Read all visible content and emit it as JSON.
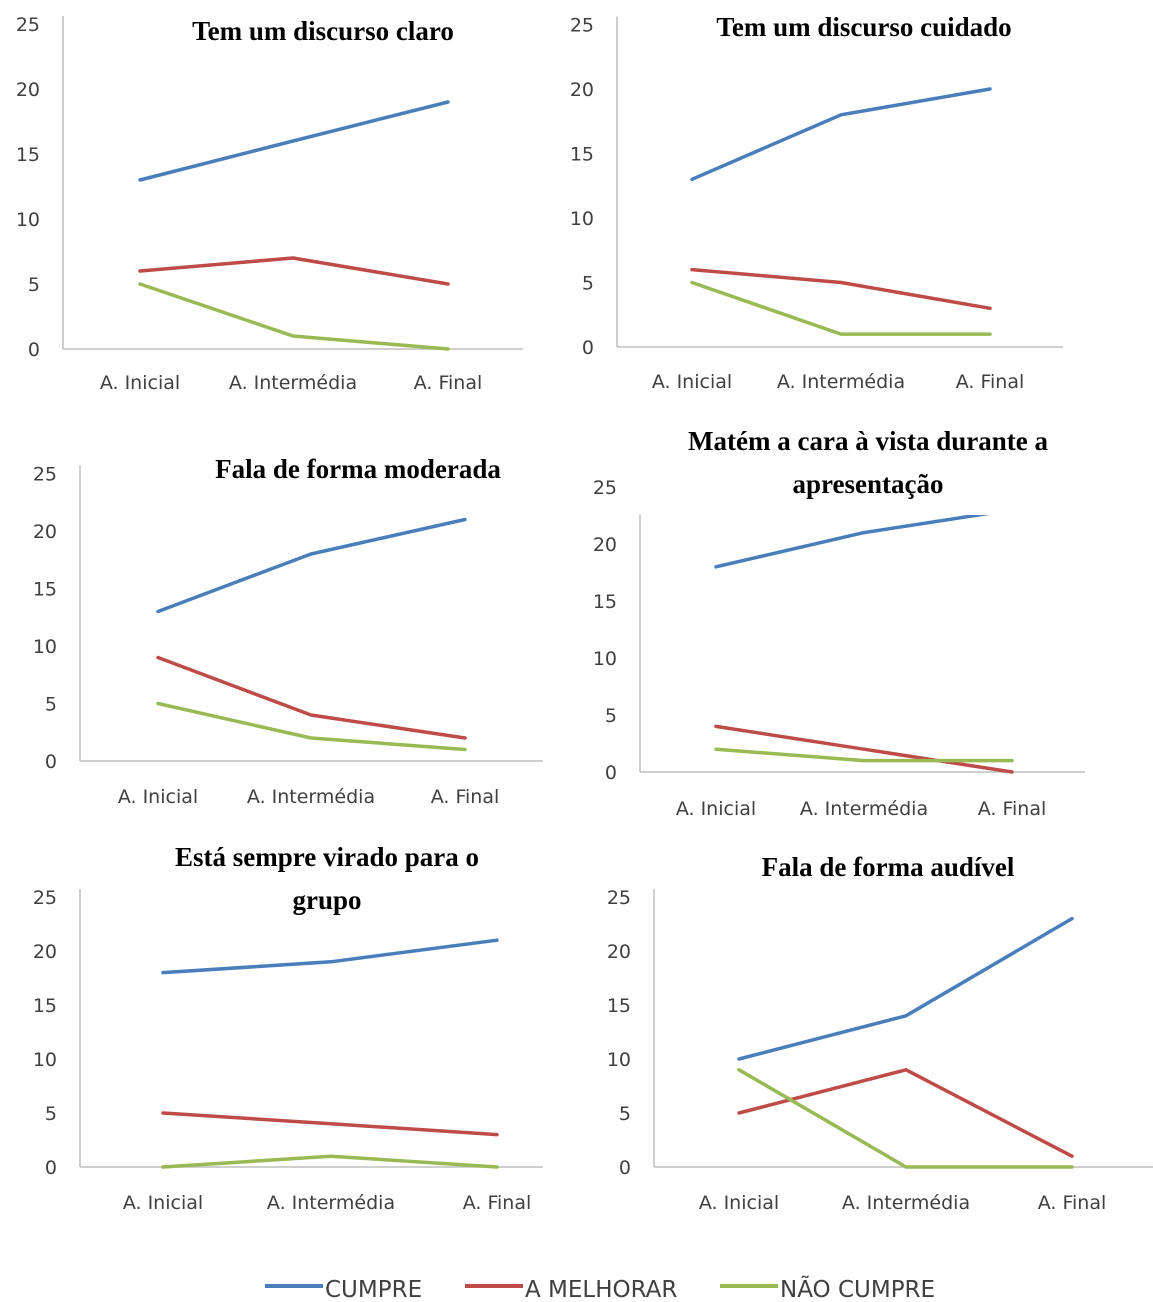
{
  "legend": [
    {
      "name": "CUMPRE",
      "color": "#4a7ebb"
    },
    {
      "name": "A MELHORAR",
      "color": "#be4b48"
    },
    {
      "name": "NÃO CUMPRE",
      "color": "#98b954"
    }
  ],
  "chart_data": [
    {
      "type": "line",
      "title": "Tem um discurso claro",
      "categories": [
        "A. Inicial",
        "A. Intermédia",
        "A. Final"
      ],
      "ylim": [
        0,
        25
      ],
      "yticks": [
        0,
        5,
        10,
        15,
        20,
        25
      ],
      "series": [
        {
          "name": "CUMPRE",
          "values": [
            13,
            16,
            19
          ]
        },
        {
          "name": "A MELHORAR",
          "values": [
            6,
            7,
            5
          ]
        },
        {
          "name": "NÃO CUMPRE",
          "values": [
            5,
            1,
            0
          ]
        }
      ]
    },
    {
      "type": "line",
      "title": "Tem um discurso cuidado",
      "categories": [
        "A. Inicial",
        "A. Intermédia",
        "A. Final"
      ],
      "ylim": [
        0,
        25
      ],
      "yticks": [
        0,
        5,
        10,
        15,
        20,
        25
      ],
      "series": [
        {
          "name": "CUMPRE",
          "values": [
            13,
            18,
            20
          ]
        },
        {
          "name": "A MELHORAR",
          "values": [
            6,
            5,
            3
          ]
        },
        {
          "name": "NÃO CUMPRE",
          "values": [
            5,
            1,
            1
          ]
        }
      ]
    },
    {
      "type": "line",
      "title": "Fala de forma moderada",
      "categories": [
        "A. Inicial",
        "A. Intermédia",
        "A. Final"
      ],
      "ylim": [
        0,
        25
      ],
      "yticks": [
        0,
        5,
        10,
        15,
        20,
        25
      ],
      "series": [
        {
          "name": "CUMPRE",
          "values": [
            13,
            18,
            21
          ]
        },
        {
          "name": "A MELHORAR",
          "values": [
            9,
            4,
            2
          ]
        },
        {
          "name": "NÃO CUMPRE",
          "values": [
            5,
            2,
            1
          ]
        }
      ]
    },
    {
      "type": "line",
      "title": "Matém a cara à vista durante a apresentação",
      "categories": [
        "A. Inicial",
        "A. Intermédia",
        "A. Final"
      ],
      "ylim": [
        0,
        25
      ],
      "yticks": [
        0,
        5,
        10,
        15,
        20,
        25
      ],
      "series": [
        {
          "name": "CUMPRE",
          "values": [
            18,
            21,
            23
          ]
        },
        {
          "name": "A MELHORAR",
          "values": [
            4,
            2,
            0
          ]
        },
        {
          "name": "NÃO CUMPRE",
          "values": [
            2,
            1,
            1
          ]
        }
      ]
    },
    {
      "type": "line",
      "title": "Está sempre virado para o grupo",
      "categories": [
        "A. Inicial",
        "A. Intermédia",
        "A. Final"
      ],
      "ylim": [
        0,
        25
      ],
      "yticks": [
        0,
        5,
        10,
        15,
        20,
        25
      ],
      "series": [
        {
          "name": "CUMPRE",
          "values": [
            18,
            19,
            21
          ]
        },
        {
          "name": "A MELHORAR",
          "values": [
            5,
            4,
            3
          ]
        },
        {
          "name": "NÃO CUMPRE",
          "values": [
            0,
            1,
            0
          ]
        }
      ]
    },
    {
      "type": "line",
      "title": "Fala de forma audível",
      "categories": [
        "A. Inicial",
        "A. Intermédia",
        "A. Final"
      ],
      "ylim": [
        0,
        25
      ],
      "yticks": [
        0,
        5,
        10,
        15,
        20,
        25
      ],
      "series": [
        {
          "name": "CUMPRE",
          "values": [
            10,
            14,
            23
          ]
        },
        {
          "name": "A MELHORAR",
          "values": [
            5,
            9,
            1
          ]
        },
        {
          "name": "NÃO CUMPRE",
          "values": [
            9,
            0,
            0
          ]
        }
      ]
    }
  ]
}
